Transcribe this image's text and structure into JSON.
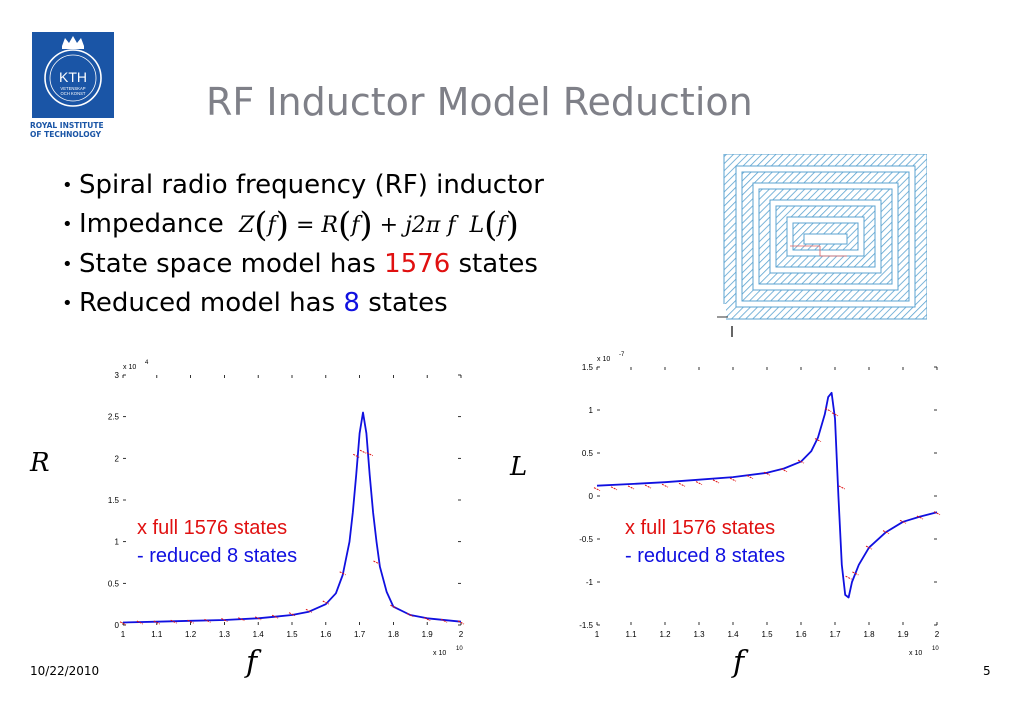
{
  "logo": {
    "text": "KTH",
    "motto_line1": "VETENSKAP",
    "motto_line2": "OCH KONST",
    "caption_line1": "ROYAL INSTITUTE",
    "caption_line2": "OF TECHNOLOGY",
    "color": "#1a55a6"
  },
  "title": "RF Inductor Model Reduction",
  "bullets": {
    "b1": "Spiral radio frequency (RF) inductor",
    "b2_label": "Impedance",
    "b2_formula": {
      "Z": "Z",
      "f": "f",
      "eq": "=",
      "R": "R",
      "plus": "+",
      "j2pi": "j2π",
      "L": "L"
    },
    "b3_prefix": "State space model has ",
    "b3_num": "1576",
    "b3_suffix": " states",
    "b4_prefix": "Reduced model has ",
    "b4_num": "8",
    "b4_suffix": " states"
  },
  "legend": {
    "full": "x full 1576 states",
    "reduced": "- reduced 8 states",
    "full_color": "#e01010",
    "reduced_color": "#1010e0"
  },
  "footer": {
    "date": "10/22/2010",
    "page": "5"
  },
  "chart_data": [
    {
      "type": "line",
      "ylabel": "R",
      "xlabel": "f",
      "x_multiplier": "x 10",
      "x_exponent": "10",
      "y_multiplier": "x 10",
      "y_exponent": "4",
      "xlim": [
        1,
        2
      ],
      "ylim": [
        0,
        3
      ],
      "xticks": [
        "1",
        "1.1",
        "1.2",
        "1.3",
        "1.4",
        "1.5",
        "1.6",
        "1.7",
        "1.8",
        "1.9",
        "2"
      ],
      "yticks": [
        "0",
        "0.5",
        "1",
        "1.5",
        "2",
        "2.5",
        "3"
      ],
      "series": [
        {
          "name": "reduced 8 states",
          "style": "solid",
          "color": "#1010e0",
          "x": [
            1.0,
            1.1,
            1.2,
            1.3,
            1.4,
            1.45,
            1.5,
            1.55,
            1.6,
            1.63,
            1.65,
            1.67,
            1.68,
            1.69,
            1.7,
            1.71,
            1.72,
            1.73,
            1.74,
            1.75,
            1.76,
            1.78,
            1.8,
            1.85,
            1.9,
            2.0
          ],
          "y": [
            0.03,
            0.04,
            0.05,
            0.06,
            0.08,
            0.1,
            0.12,
            0.16,
            0.25,
            0.38,
            0.6,
            1.0,
            1.35,
            1.8,
            2.3,
            2.55,
            2.3,
            1.8,
            1.35,
            1.0,
            0.7,
            0.4,
            0.22,
            0.12,
            0.08,
            0.04
          ]
        },
        {
          "name": "full 1576 states",
          "style": "markers",
          "color": "#e01010",
          "x": [
            1.0,
            1.05,
            1.1,
            1.15,
            1.2,
            1.25,
            1.3,
            1.35,
            1.4,
            1.45,
            1.5,
            1.55,
            1.6,
            1.65,
            1.69,
            1.71,
            1.73,
            1.75,
            1.8,
            1.85,
            1.9,
            1.95,
            2.0
          ],
          "y": [
            0.02,
            0.03,
            0.03,
            0.04,
            0.04,
            0.05,
            0.06,
            0.07,
            0.08,
            0.1,
            0.13,
            0.17,
            0.27,
            0.62,
            2.03,
            2.08,
            2.05,
            0.75,
            0.22,
            0.12,
            0.07,
            0.05,
            0.03
          ]
        }
      ]
    },
    {
      "type": "line",
      "ylabel": "L",
      "xlabel": "f",
      "x_multiplier": "x 10",
      "x_exponent": "10",
      "y_multiplier": "x 10",
      "y_exponent": "-7",
      "xlim": [
        1,
        2
      ],
      "ylim": [
        -1.5,
        1.5
      ],
      "xticks": [
        "1",
        "1.1",
        "1.2",
        "1.3",
        "1.4",
        "1.5",
        "1.6",
        "1.7",
        "1.8",
        "1.9",
        "2"
      ],
      "yticks": [
        "-1.5",
        "-1",
        "-0.5",
        "0",
        "0.5",
        "1",
        "1.5"
      ],
      "series": [
        {
          "name": "reduced 8 states",
          "style": "solid",
          "color": "#1010e0",
          "x": [
            1.0,
            1.1,
            1.2,
            1.3,
            1.4,
            1.5,
            1.55,
            1.6,
            1.63,
            1.65,
            1.67,
            1.68,
            1.69,
            1.7,
            1.71,
            1.72,
            1.73,
            1.74,
            1.75,
            1.77,
            1.8,
            1.85,
            1.9,
            1.95,
            2.0
          ],
          "y": [
            0.12,
            0.14,
            0.16,
            0.19,
            0.22,
            0.27,
            0.32,
            0.4,
            0.52,
            0.68,
            0.95,
            1.15,
            1.2,
            0.9,
            0.0,
            -0.8,
            -1.15,
            -1.18,
            -1.0,
            -0.8,
            -0.6,
            -0.42,
            -0.3,
            -0.24,
            -0.19
          ]
        },
        {
          "name": "full 1576 states",
          "style": "markers",
          "color": "#e01010",
          "x": [
            1.0,
            1.05,
            1.1,
            1.15,
            1.2,
            1.25,
            1.3,
            1.35,
            1.4,
            1.45,
            1.5,
            1.55,
            1.6,
            1.65,
            1.68,
            1.7,
            1.72,
            1.74,
            1.76,
            1.8,
            1.85,
            1.9,
            1.95,
            2.0
          ],
          "y": [
            0.08,
            0.09,
            0.1,
            0.11,
            0.12,
            0.13,
            0.15,
            0.17,
            0.19,
            0.22,
            0.26,
            0.3,
            0.4,
            0.65,
            1.0,
            0.95,
            0.1,
            -0.95,
            -0.9,
            -0.6,
            -0.42,
            -0.3,
            -0.25,
            -0.2
          ]
        }
      ]
    }
  ]
}
